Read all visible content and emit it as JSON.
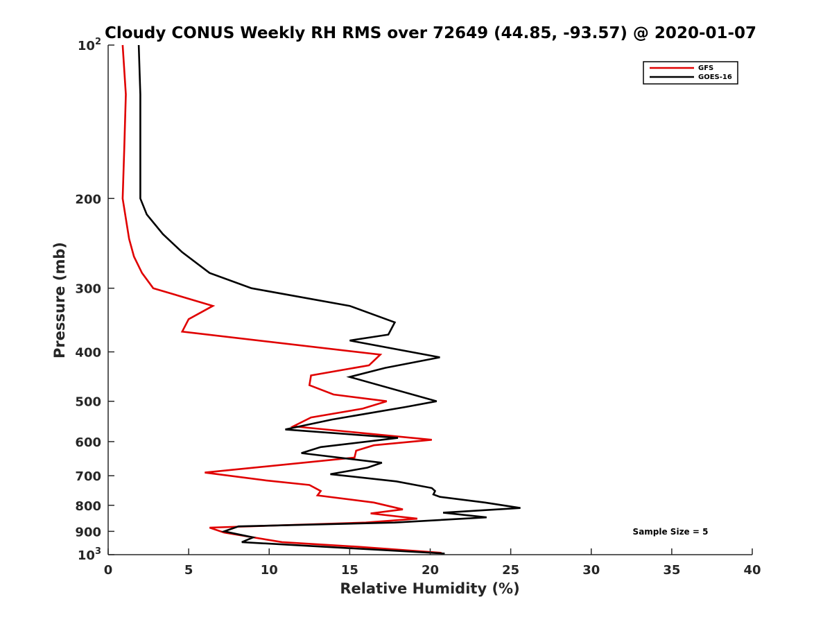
{
  "chart_data": {
    "type": "line",
    "title": "Cloudy CONUS Weekly RH RMS over 72649 (44.85, -93.57) @ 2020-01-07",
    "xlabel": "Relative Humidity (%)",
    "ylabel": "Pressure (mb)",
    "xlim": [
      0,
      40
    ],
    "ylim": [
      100,
      1000
    ],
    "y_scale": "log",
    "y_reversed": true,
    "grid": false,
    "legend_position": "top-right",
    "x_ticks": [
      {
        "value": 0,
        "label": "0"
      },
      {
        "value": 5,
        "label": "5"
      },
      {
        "value": 10,
        "label": "10"
      },
      {
        "value": 15,
        "label": "15"
      },
      {
        "value": 20,
        "label": "20"
      },
      {
        "value": 25,
        "label": "25"
      },
      {
        "value": 30,
        "label": "30"
      },
      {
        "value": 35,
        "label": "35"
      },
      {
        "value": 40,
        "label": "40"
      }
    ],
    "y_ticks": [
      {
        "value": 100,
        "label": "10",
        "sup": "2"
      },
      {
        "value": 200,
        "label": "200",
        "sup": ""
      },
      {
        "value": 300,
        "label": "300",
        "sup": ""
      },
      {
        "value": 400,
        "label": "400",
        "sup": ""
      },
      {
        "value": 500,
        "label": "500",
        "sup": ""
      },
      {
        "value": 600,
        "label": "600",
        "sup": ""
      },
      {
        "value": 700,
        "label": "700",
        "sup": ""
      },
      {
        "value": 800,
        "label": "800",
        "sup": ""
      },
      {
        "value": 900,
        "label": "900",
        "sup": ""
      },
      {
        "value": 1000,
        "label": "10",
        "sup": "3"
      }
    ],
    "series": [
      {
        "name": "GFS",
        "color": "#e00000",
        "points": [
          [
            0.9,
            100
          ],
          [
            1.1,
            125
          ],
          [
            1.0,
            160
          ],
          [
            0.9,
            200
          ],
          [
            1.3,
            240
          ],
          [
            1.6,
            260
          ],
          [
            2.1,
            280
          ],
          [
            2.8,
            300
          ],
          [
            6.5,
            325
          ],
          [
            5.0,
            345
          ],
          [
            4.6,
            365
          ],
          [
            16.9,
            405
          ],
          [
            16.2,
            425
          ],
          [
            12.6,
            445
          ],
          [
            12.5,
            465
          ],
          [
            14.0,
            485
          ],
          [
            17.3,
            500
          ],
          [
            15.8,
            517
          ],
          [
            12.6,
            538
          ],
          [
            11.5,
            560
          ],
          [
            20.1,
            595
          ],
          [
            16.5,
            610
          ],
          [
            15.4,
            625
          ],
          [
            15.3,
            645
          ],
          [
            6.0,
            690
          ],
          [
            9.8,
            715
          ],
          [
            12.5,
            730
          ],
          [
            13.2,
            750
          ],
          [
            13.0,
            765
          ],
          [
            16.5,
            790
          ],
          [
            18.3,
            815
          ],
          [
            16.3,
            830
          ],
          [
            19.2,
            850
          ],
          [
            16.0,
            865
          ],
          [
            6.3,
            885
          ],
          [
            7.2,
            905
          ],
          [
            10.8,
            945
          ],
          [
            15.5,
            965
          ],
          [
            20.7,
            992
          ]
        ]
      },
      {
        "name": "GOES-16",
        "color": "#000000",
        "points": [
          [
            1.9,
            100
          ],
          [
            2.0,
            125
          ],
          [
            2.0,
            160
          ],
          [
            2.0,
            200
          ],
          [
            2.4,
            215
          ],
          [
            3.4,
            235
          ],
          [
            4.6,
            255
          ],
          [
            6.3,
            280
          ],
          [
            8.9,
            300
          ],
          [
            15.0,
            325
          ],
          [
            17.8,
            350
          ],
          [
            17.4,
            370
          ],
          [
            15.0,
            380
          ],
          [
            20.6,
            410
          ],
          [
            17.2,
            430
          ],
          [
            15.0,
            448
          ],
          [
            20.4,
            500
          ],
          [
            18.5,
            513
          ],
          [
            13.9,
            543
          ],
          [
            11.0,
            568
          ],
          [
            18.0,
            590
          ],
          [
            13.2,
            615
          ],
          [
            12.0,
            632
          ],
          [
            17.0,
            660
          ],
          [
            16.1,
            675
          ],
          [
            13.8,
            695
          ],
          [
            17.9,
            718
          ],
          [
            20.1,
            740
          ],
          [
            20.3,
            750
          ],
          [
            20.2,
            762
          ],
          [
            20.6,
            770
          ],
          [
            23.4,
            790
          ],
          [
            25.6,
            810
          ],
          [
            20.8,
            827
          ],
          [
            23.5,
            845
          ],
          [
            17.8,
            865
          ],
          [
            8.1,
            880
          ],
          [
            7.2,
            900
          ],
          [
            9.0,
            925
          ],
          [
            8.3,
            945
          ],
          [
            20.9,
            995
          ]
        ]
      }
    ],
    "annotation": "Sample Size = 5"
  }
}
